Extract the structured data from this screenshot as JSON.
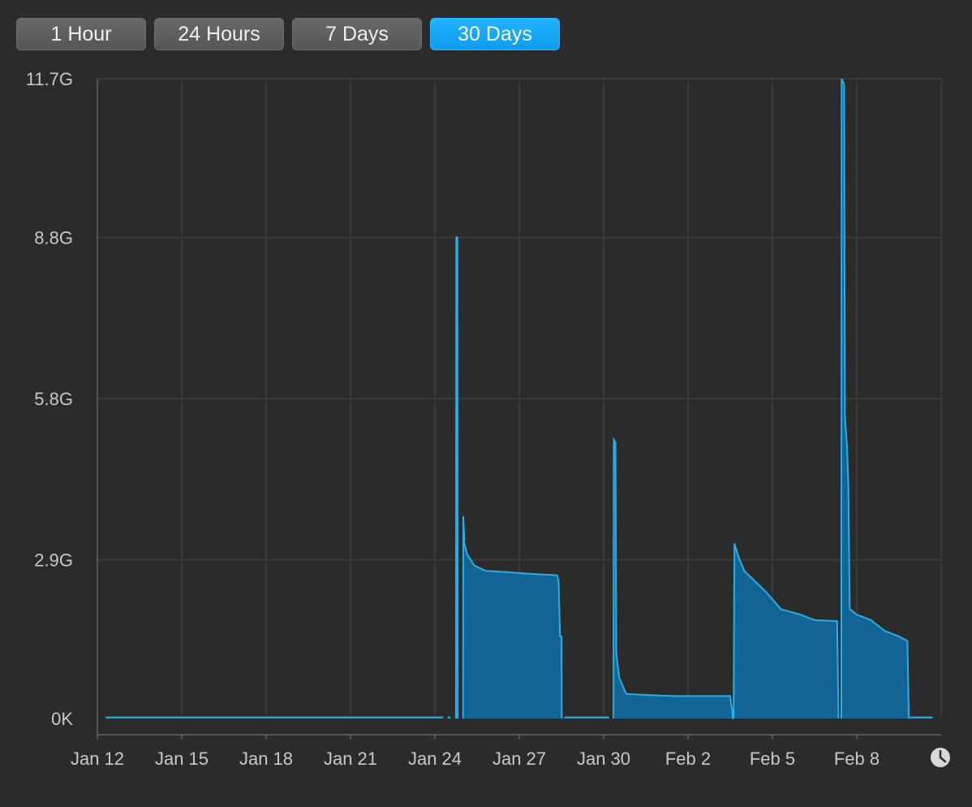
{
  "range_buttons": [
    {
      "label": "1 Hour",
      "active": false
    },
    {
      "label": "24 Hours",
      "active": false
    },
    {
      "label": "7 Days",
      "active": false
    },
    {
      "label": "30 Days",
      "active": true
    }
  ],
  "colors": {
    "accent": "#1aa8f5",
    "area_fill": "#126494",
    "line": "#2aaee8",
    "background": "#2b2b2b",
    "grid": "#404040"
  },
  "clock_icon": "clock-icon",
  "chart_data": {
    "type": "area",
    "y_unit": "bytes (G)",
    "ylim": [
      0,
      11.7
    ],
    "yticks": [
      {
        "value": 0,
        "label": "0K"
      },
      {
        "value": 2.9,
        "label": "2.9G"
      },
      {
        "value": 5.85,
        "label": "5.8G"
      },
      {
        "value": 8.8,
        "label": "8.8G"
      },
      {
        "value": 11.7,
        "label": "11.7G"
      }
    ],
    "xlim": [
      0,
      30
    ],
    "xticks": [
      {
        "value": 0,
        "label": "Jan 12"
      },
      {
        "value": 3,
        "label": "Jan 15"
      },
      {
        "value": 6,
        "label": "Jan 18"
      },
      {
        "value": 9,
        "label": "Jan 21"
      },
      {
        "value": 12,
        "label": "Jan 24"
      },
      {
        "value": 15,
        "label": "Jan 27"
      },
      {
        "value": 18,
        "label": "Jan 30"
      },
      {
        "value": 21,
        "label": "Feb 2"
      },
      {
        "value": 24,
        "label": "Feb 5"
      },
      {
        "value": 27,
        "label": "Feb 8"
      }
    ],
    "grid": true,
    "segments": [
      [
        [
          0.3,
          0.02
        ],
        [
          12.3,
          0.02
        ]
      ],
      [
        [
          12.45,
          0.02
        ],
        [
          12.55,
          0.02
        ]
      ],
      [
        [
          12.75,
          0
        ],
        [
          12.76,
          8.8
        ],
        [
          12.8,
          8.8
        ],
        [
          12.81,
          0
        ]
      ],
      [
        [
          13.0,
          0
        ],
        [
          13.01,
          3.7
        ],
        [
          13.05,
          3.2
        ],
        [
          13.15,
          3.0
        ],
        [
          13.4,
          2.8
        ],
        [
          13.8,
          2.7
        ],
        [
          14.5,
          2.68
        ],
        [
          15.0,
          2.66
        ],
        [
          15.6,
          2.64
        ],
        [
          16.35,
          2.62
        ],
        [
          16.4,
          2.5
        ],
        [
          16.45,
          1.5
        ],
        [
          16.5,
          1.5
        ],
        [
          16.51,
          0
        ]
      ],
      [
        [
          16.6,
          0.02
        ],
        [
          18.2,
          0.02
        ]
      ],
      [
        [
          18.35,
          0
        ],
        [
          18.36,
          5.1
        ],
        [
          18.42,
          5.05
        ],
        [
          18.45,
          1.2
        ],
        [
          18.55,
          0.75
        ],
        [
          18.8,
          0.45
        ],
        [
          19.5,
          0.43
        ],
        [
          20.5,
          0.41
        ],
        [
          22.5,
          0.41
        ],
        [
          22.6,
          0
        ],
        [
          22.62,
          0
        ]
      ],
      [
        [
          22.62,
          0
        ],
        [
          22.65,
          3.2
        ],
        [
          22.8,
          2.95
        ],
        [
          23.0,
          2.7
        ],
        [
          23.4,
          2.5
        ],
        [
          23.8,
          2.3
        ],
        [
          24.3,
          2.0
        ],
        [
          25.0,
          1.9
        ],
        [
          25.5,
          1.8
        ],
        [
          26.3,
          1.78
        ],
        [
          26.35,
          0
        ]
      ],
      [
        [
          26.45,
          0
        ],
        [
          26.46,
          11.7
        ],
        [
          26.55,
          11.6
        ],
        [
          26.58,
          5.5
        ],
        [
          26.65,
          5.0
        ],
        [
          26.7,
          4.3
        ],
        [
          26.75,
          2.0
        ],
        [
          27.0,
          1.9
        ],
        [
          27.5,
          1.8
        ],
        [
          28.0,
          1.6
        ],
        [
          28.5,
          1.5
        ],
        [
          28.8,
          1.42
        ],
        [
          28.85,
          0
        ]
      ],
      [
        [
          28.85,
          0.02
        ],
        [
          29.7,
          0.02
        ]
      ]
    ]
  }
}
